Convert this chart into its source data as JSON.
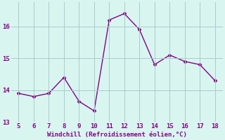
{
  "x": [
    5,
    6,
    7,
    8,
    9,
    10,
    11,
    12,
    13,
    14,
    15,
    16,
    17,
    18
  ],
  "y": [
    13.9,
    13.8,
    13.9,
    14.4,
    13.65,
    13.35,
    16.2,
    16.4,
    15.9,
    14.8,
    15.1,
    14.9,
    14.8,
    14.3
  ],
  "line_color": "#880088",
  "marker": "D",
  "marker_size": 2.5,
  "bg_color": "#d8f5f0",
  "grid_color": "#aacccc",
  "xlabel": "Windchill (Refroidissement éolien,°C)",
  "xlabel_color": "#880088",
  "tick_color": "#880088",
  "xlim": [
    4.5,
    18.5
  ],
  "ylim": [
    13.0,
    16.75
  ],
  "yticks": [
    13,
    14,
    15,
    16
  ],
  "xticks": [
    5,
    6,
    7,
    8,
    9,
    10,
    11,
    12,
    13,
    14,
    15,
    16,
    17,
    18
  ],
  "line_width": 1.0,
  "tick_fontsize": 6.5,
  "xlabel_fontsize": 6.5
}
